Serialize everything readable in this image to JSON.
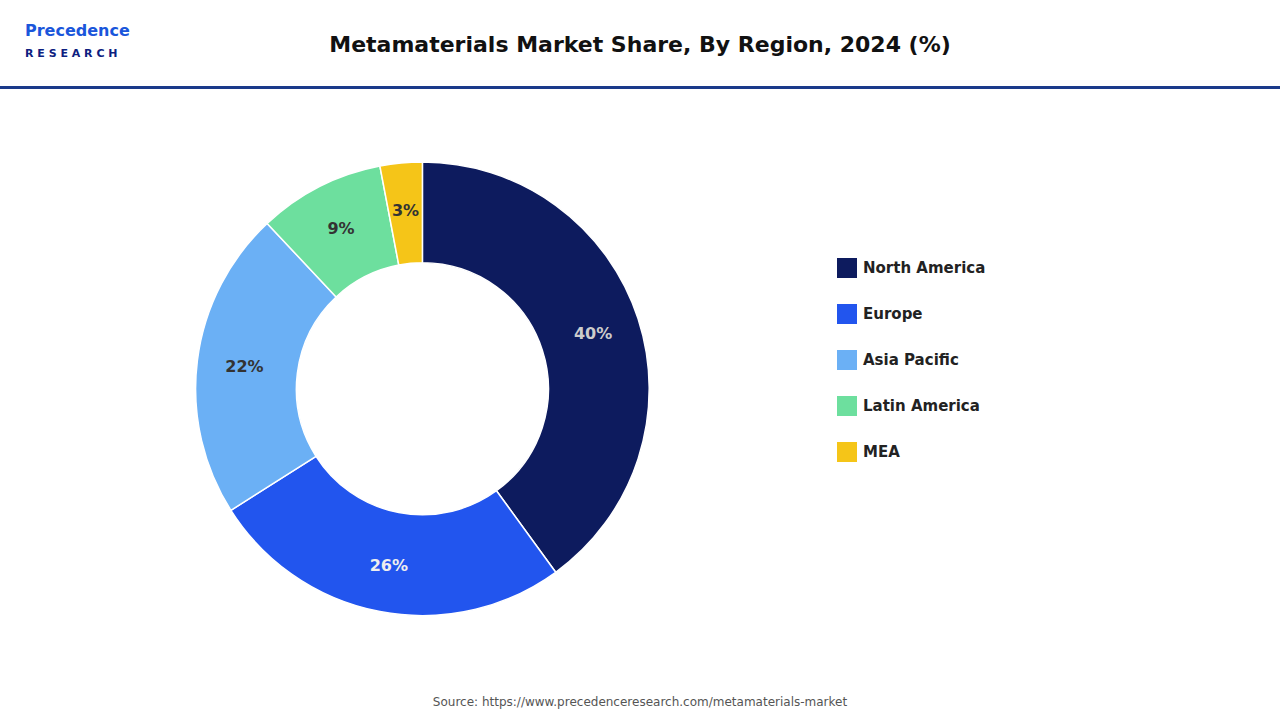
{
  "chart_data": {
    "type": "pie",
    "title": "Metamaterials Market Share, By Region, 2024 (%)",
    "categories": [
      "North America",
      "Europe",
      "Asia Pacific",
      "Latin America",
      "MEA"
    ],
    "values": [
      40,
      26,
      22,
      9,
      3
    ],
    "value_labels": [
      "40%",
      "26%",
      "22%",
      "9%",
      "3%"
    ],
    "colors": [
      "#0d1b5e",
      "#2255ee",
      "#6bb0f5",
      "#6ddf9e",
      "#f5c518"
    ],
    "data_labels": true,
    "legend": "right",
    "annotations": [
      "Precedence",
      "R E S E A R C H",
      "Source: https://www.precedenceresearch.com/metamaterials-market"
    ]
  }
}
